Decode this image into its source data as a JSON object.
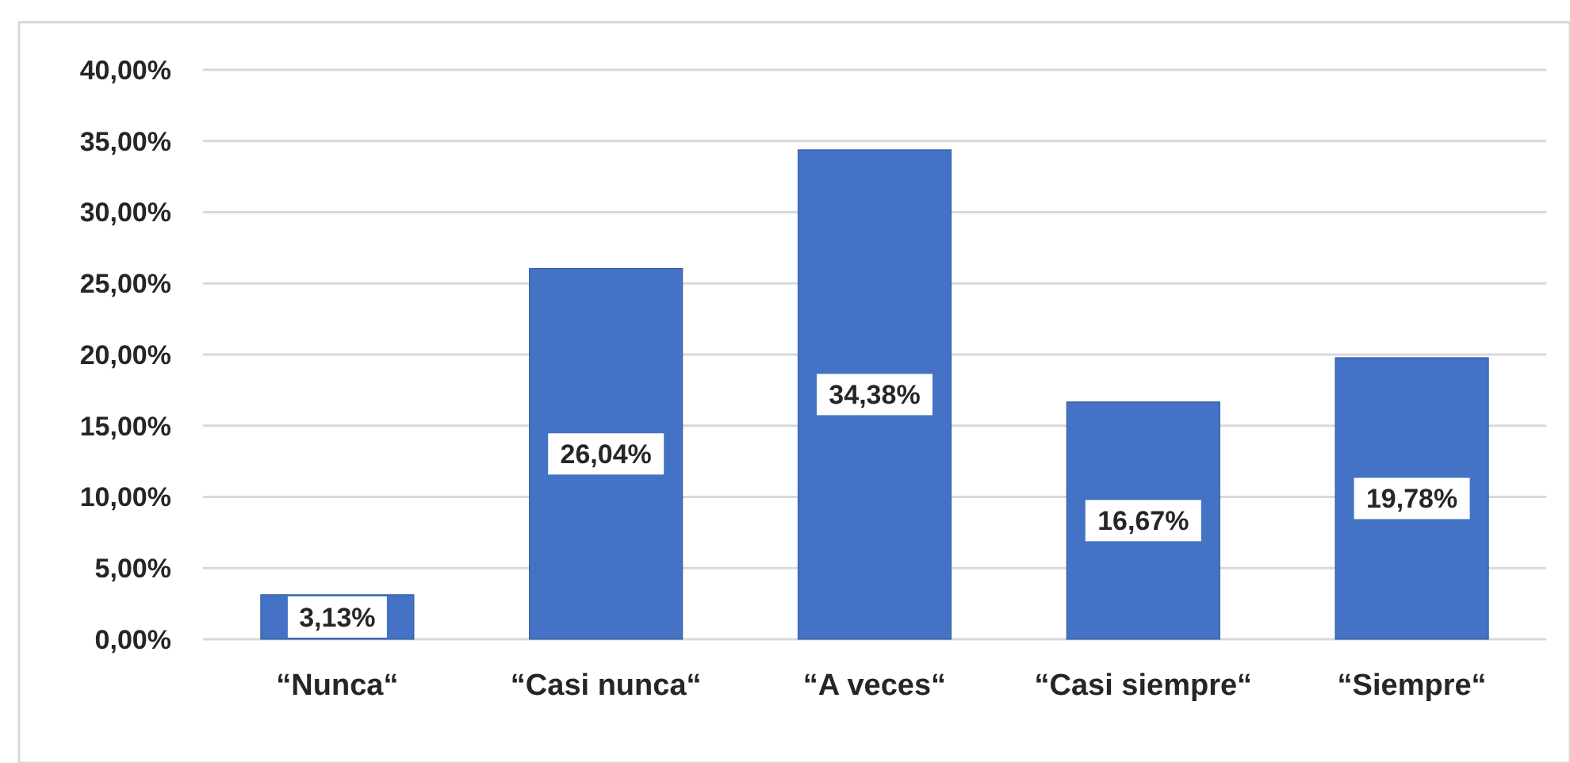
{
  "chart_data": {
    "type": "bar",
    "categories": [
      "“Nunca“",
      "“Casi nunca“",
      "“A veces“",
      "“Casi siempre“",
      "“Siempre“"
    ],
    "values": [
      3.13,
      26.04,
      34.38,
      16.67,
      19.78
    ],
    "color": "#4472c4",
    "value_labels": [
      "3,13%",
      "26,04%",
      "34,38%",
      "16,67%",
      "19,78%"
    ],
    "ylim": [
      0,
      40
    ],
    "yticks": [
      {
        "value": 0,
        "label": "0,00%"
      },
      {
        "value": 5,
        "label": "5,00%"
      },
      {
        "value": 10,
        "label": "10,00%"
      },
      {
        "value": 15,
        "label": "15,00%"
      },
      {
        "value": 20,
        "label": "20,00%"
      },
      {
        "value": 25,
        "label": "25,00%"
      },
      {
        "value": 30,
        "label": "30,00%"
      },
      {
        "value": 35,
        "label": "35,00%"
      },
      {
        "value": 40,
        "label": "40,00%"
      }
    ],
    "grid": "y"
  }
}
